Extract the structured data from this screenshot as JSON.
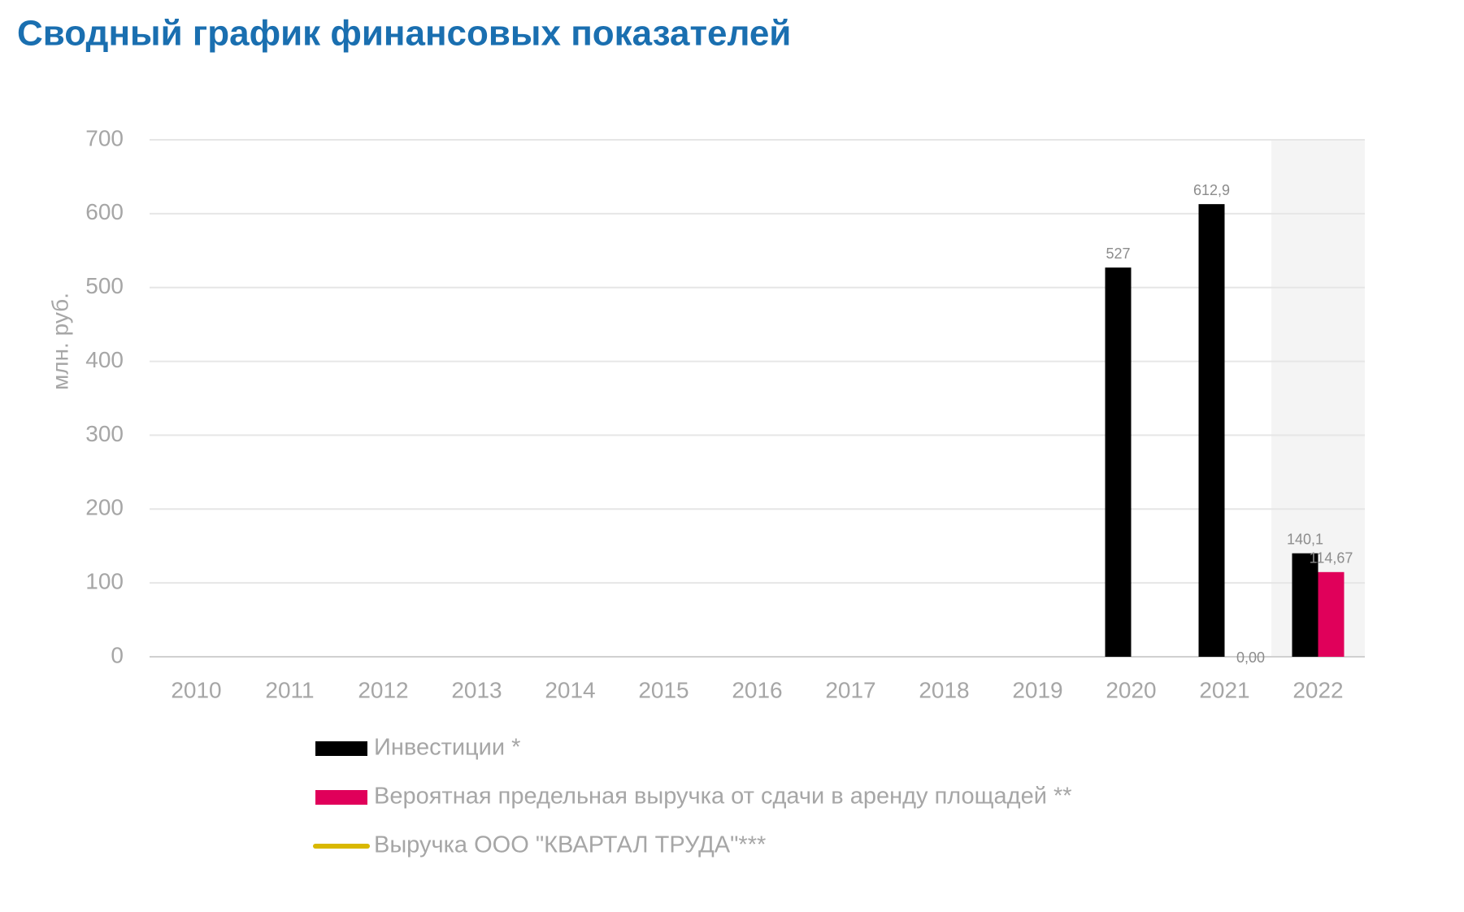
{
  "chart_data": {
    "type": "bar",
    "title": "Сводный график финансовых показателей",
    "y_label": "млн. руб.",
    "categories": [
      "2010",
      "2011",
      "2012",
      "2013",
      "2014",
      "2015",
      "2016",
      "2017",
      "2018",
      "2019",
      "2020",
      "2021",
      "2022"
    ],
    "series": [
      {
        "name": "Инвестиции *",
        "color": "#000000",
        "type": "bar",
        "values": [
          null,
          null,
          null,
          null,
          null,
          null,
          null,
          null,
          null,
          null,
          527,
          612.9,
          140.1
        ],
        "value_labels": [
          null,
          null,
          null,
          null,
          null,
          null,
          null,
          null,
          null,
          null,
          "527",
          "612,9",
          "140,1"
        ]
      },
      {
        "name": "Вероятная предельная выручка от сдачи в аренду площадей **",
        "color": "#e0005a",
        "type": "bar",
        "values": [
          null,
          null,
          null,
          null,
          null,
          null,
          null,
          null,
          null,
          null,
          null,
          0,
          114.67
        ],
        "value_labels": [
          null,
          null,
          null,
          null,
          null,
          null,
          null,
          null,
          null,
          null,
          null,
          "0,00",
          "114,67"
        ]
      },
      {
        "name": "Выручка ООО \"КВАРТАЛ ТРУДА\"***",
        "color": "#d9b800",
        "type": "line",
        "values": [
          null,
          null,
          null,
          null,
          null,
          null,
          null,
          null,
          null,
          null,
          null,
          null,
          null
        ]
      }
    ],
    "ylim": [
      0,
      700
    ],
    "yticks": [
      0,
      100,
      200,
      300,
      400,
      500,
      600,
      700
    ],
    "grid": true
  }
}
